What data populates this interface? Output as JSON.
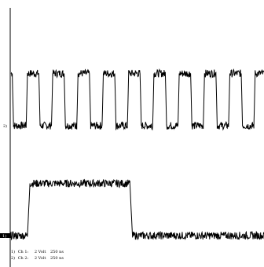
{
  "chart_data": {
    "type": "line",
    "title": "",
    "xlabel": "",
    "ylabel": "",
    "xlim": [
      0,
      10
    ],
    "ylim": [
      -4,
      4
    ],
    "grid": false,
    "series": [
      {
        "name": "Ch 1",
        "marker": "1",
        "description": "square wave, period ~1 division",
        "x": [
          0.0,
          0.05,
          0.1,
          0.55,
          0.6,
          0.65,
          1.05,
          1.1,
          1.15,
          1.55,
          1.6,
          1.65,
          2.05,
          2.1,
          2.15,
          2.55,
          2.6,
          2.65,
          3.05,
          3.1,
          3.15,
          3.55,
          3.6,
          3.65,
          4.05,
          4.1,
          4.15,
          4.55,
          4.6,
          4.65,
          5.05,
          5.1,
          5.15,
          5.55,
          5.6,
          5.65,
          6.05,
          6.1,
          6.15,
          6.55,
          6.6,
          6.65,
          7.05,
          7.1,
          7.15,
          7.55,
          7.6,
          7.65,
          8.05,
          8.1,
          8.15,
          8.55,
          8.6,
          8.65,
          9.05,
          9.1,
          9.15,
          9.55,
          9.6,
          9.65,
          10.0
        ],
        "y": [
          1.9,
          1.9,
          0.0,
          0.0,
          0.0,
          1.9,
          1.9,
          1.9,
          0.0,
          0.0,
          0.0,
          1.9,
          1.9,
          1.9,
          0.0,
          0.0,
          0.0,
          1.9,
          1.9,
          1.9,
          0.0,
          0.0,
          0.0,
          1.9,
          1.9,
          1.9,
          0.0,
          0.0,
          0.0,
          1.9,
          1.9,
          1.9,
          0.0,
          0.0,
          0.0,
          1.9,
          1.9,
          1.9,
          0.0,
          0.0,
          0.0,
          1.9,
          1.9,
          1.9,
          0.0,
          0.0,
          0.0,
          1.9,
          1.9,
          1.9,
          0.0,
          0.0,
          0.0,
          1.9,
          1.9,
          1.9,
          0.0,
          0.0,
          0.0,
          1.9,
          1.9
        ]
      },
      {
        "name": "Ch 2",
        "marker": "2",
        "description": "single pulse",
        "x": [
          0.0,
          0.65,
          0.75,
          4.7,
          4.8,
          10.0
        ],
        "y": [
          -4.0,
          -4.0,
          -2.1,
          -2.1,
          -4.0,
          -4.0
        ]
      }
    ],
    "channel_markers": [
      "2",
      "1"
    ],
    "legend": [
      {
        "channel": "1)",
        "label": "Ch 1:",
        "volts": "2 Volt",
        "time": "250 ns"
      },
      {
        "channel": "2)",
        "label": "Ch 2:",
        "volts": "2 Volt",
        "time": "250 ns"
      }
    ],
    "legend_position": "bottom-left",
    "colors": {
      "trace": "#000000",
      "background": "#ffffff"
    }
  }
}
